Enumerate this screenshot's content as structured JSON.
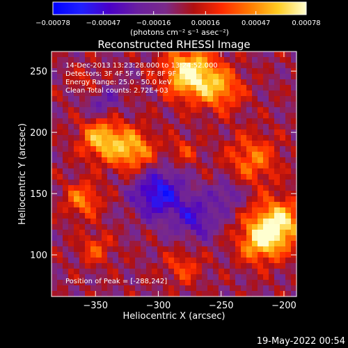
{
  "chart_data": {
    "type": "heatmap",
    "title": "Reconstructed RHESSI Image",
    "xlabel": "Heliocentric X (arcsec)",
    "ylabel": "Heliocentric Y (arcsec)",
    "xlim": [
      -385,
      -190
    ],
    "ylim": [
      66,
      266
    ],
    "xticks": [
      -350,
      -300,
      -250,
      -200
    ],
    "yticks": [
      100,
      150,
      200,
      250
    ],
    "colorbar": {
      "ticks": [
        -0.00078,
        -0.00047,
        -0.00016,
        0.00016,
        0.00047,
        0.00078
      ],
      "tick_labels": [
        "-0.00078",
        "-0.00047",
        "-0.00016",
        "0.00016",
        "0.00047",
        "0.00078"
      ],
      "unit_label": "(photons cm⁻² s⁻¹ asec⁻²)",
      "range": [
        -0.00078,
        0.00078
      ]
    },
    "colormap": [
      "#0000ff",
      "#2020ff",
      "#4a00c8",
      "#6a1fa0",
      "#7a2a8a",
      "#b01010",
      "#ff2a00",
      "#ff7a00",
      "#ffcc22",
      "#ffffd0"
    ],
    "info": [
      "14-Dec-2013 13:23:28.000 to 13:24:52.000",
      "Detectors: 3F 4F 5F 6F 7F 8F 9F",
      "Energy Range: 25.0 - 50.0 keV",
      "Clean      Total counts: 2.72E+03"
    ],
    "peak_label": "Position of Peak = [-288,242]",
    "peak": [
      -288,
      242
    ],
    "sources": [
      {
        "x": -275,
        "y": 248,
        "amp": 0.00078,
        "sigma": 14
      },
      {
        "x": -250,
        "y": 235,
        "amp": 0.00045,
        "sigma": 12
      },
      {
        "x": -345,
        "y": 195,
        "amp": 0.00058,
        "sigma": 12
      },
      {
        "x": -320,
        "y": 185,
        "amp": 0.00055,
        "sigma": 12
      },
      {
        "x": -280,
        "y": 185,
        "amp": 0.00025,
        "sigma": 8
      },
      {
        "x": -360,
        "y": 145,
        "amp": 0.00042,
        "sigma": 10
      },
      {
        "x": -225,
        "y": 178,
        "amp": 0.0004,
        "sigma": 14
      },
      {
        "x": -205,
        "y": 125,
        "amp": 0.00072,
        "sigma": 14
      },
      {
        "x": -220,
        "y": 110,
        "amp": 0.0005,
        "sigma": 12
      },
      {
        "x": -350,
        "y": 105,
        "amp": 0.0003,
        "sigma": 9
      },
      {
        "x": -280,
        "y": 90,
        "amp": 0.00028,
        "sigma": 10
      },
      {
        "x": -355,
        "y": 240,
        "amp": 0.0002,
        "sigma": 9
      },
      {
        "x": -300,
        "y": 150,
        "amp": -0.0006,
        "sigma": 14
      },
      {
        "x": -270,
        "y": 130,
        "amp": -0.0004,
        "sigma": 12
      },
      {
        "x": -345,
        "y": 225,
        "amp": -0.0003,
        "sigma": 10
      },
      {
        "x": -245,
        "y": 150,
        "amp": -0.00028,
        "sigma": 9
      }
    ]
  },
  "footer": {
    "timestamp": "19-May-2022 00:54"
  }
}
